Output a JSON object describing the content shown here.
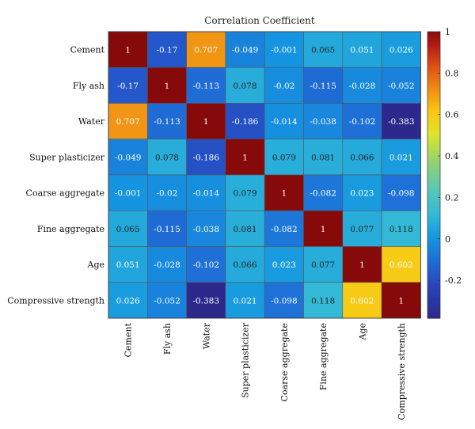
{
  "chart_data": {
    "type": "heatmap",
    "title": "Correlation Coefficient",
    "row_labels": [
      "Cement",
      "Fly ash",
      "Water",
      "Super plasticizer",
      "Coarse aggregate",
      "Fine aggregate",
      "Age",
      "Compressive strength"
    ],
    "col_labels": [
      "Cement",
      "Fly ash",
      "Water",
      "Super plasticizer",
      "Coarse aggregate",
      "Fine aggregate",
      "Age",
      "Compressive strength"
    ],
    "values": [
      [
        "1",
        "-0.17",
        "0.707",
        "-0.049",
        "-0.001",
        "0.065",
        "0.051",
        "0.026"
      ],
      [
        "-0.17",
        "1",
        "-0.113",
        "0.078",
        "-0.02",
        "-0.115",
        "-0.028",
        "-0.052"
      ],
      [
        "0.707",
        "-0.113",
        "1",
        "-0.186",
        "-0.014",
        "-0.038",
        "-0.102",
        "-0.383"
      ],
      [
        "-0.049",
        "0.078",
        "-0.186",
        "1",
        "0.079",
        "0.081",
        "0.066",
        "0.021"
      ],
      [
        "-0.001",
        "-0.02",
        "-0.014",
        "0.079",
        "1",
        "-0.082",
        "0.023",
        "-0.098"
      ],
      [
        "0.065",
        "-0.115",
        "-0.038",
        "0.081",
        "-0.082",
        "1",
        "0.077",
        "0.118"
      ],
      [
        "0.051",
        "-0.028",
        "-0.102",
        "0.066",
        "0.023",
        "0.077",
        "1",
        "0.602"
      ],
      [
        "0.026",
        "-0.052",
        "-0.383",
        "0.021",
        "-0.098",
        "0.118",
        "0.602",
        "1"
      ]
    ],
    "colorbar": {
      "range": [
        -0.383,
        1
      ],
      "ticks": [
        "1",
        "0.8",
        "0.6",
        "0.4",
        "0.2",
        "0",
        "-0.2"
      ],
      "colormap": "parula"
    }
  }
}
